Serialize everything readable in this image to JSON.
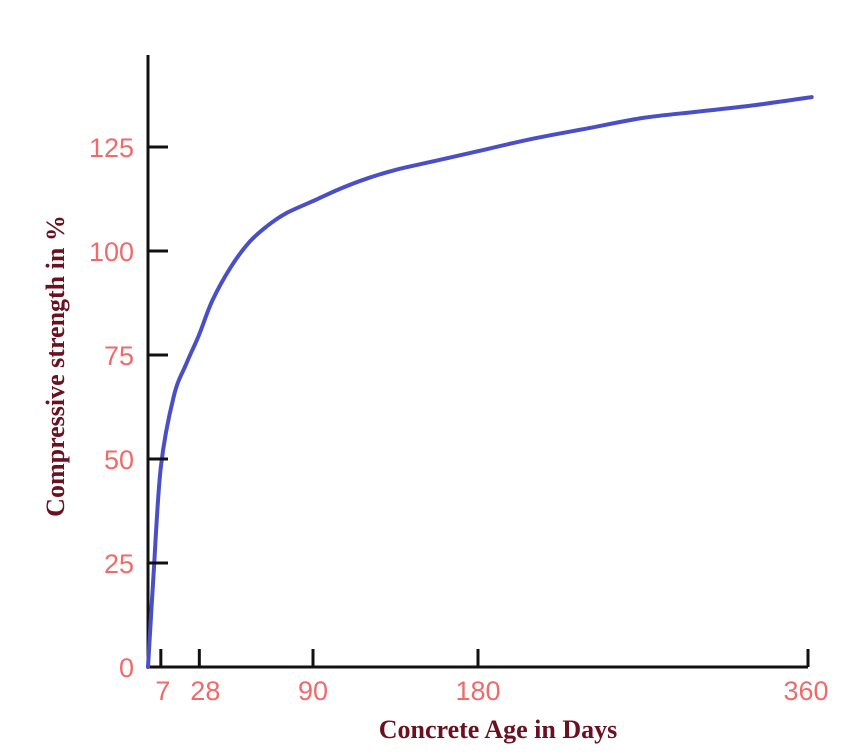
{
  "colors": {
    "tick_labels": "#f06a6a",
    "axis_titles": "#6b1020",
    "curve": "#4a4fc6",
    "axis_lines": "#111111",
    "background": "#ffffff"
  },
  "chart_data": {
    "type": "line",
    "title": "",
    "xlabel": "Concrete Age in Days",
    "ylabel": "Compressive strength in %",
    "x_ticks": [
      7,
      28,
      90,
      180,
      360
    ],
    "x_tick_labels": [
      "7",
      "28",
      "90",
      "180",
      "360"
    ],
    "y_ticks": [
      0,
      25,
      50,
      75,
      100,
      125
    ],
    "y_tick_labels": [
      "0",
      "25",
      "50",
      "75",
      "100",
      "125"
    ],
    "xlim": [
      0,
      360
    ],
    "ylim": [
      0,
      150
    ],
    "grid": false,
    "legend": "none",
    "series": [
      {
        "x": [
          0,
          3,
          7,
          14,
          21,
          28,
          35,
          45,
          55,
          65,
          75,
          90,
          105,
          120,
          135,
          150,
          165,
          180,
          210,
          240,
          270,
          300,
          330,
          362
        ],
        "values": [
          0,
          22,
          48,
          65,
          73,
          80,
          88,
          96,
          102,
          106,
          109,
          112,
          115,
          117.5,
          119.5,
          121,
          122.5,
          124,
          127,
          129.5,
          132,
          133.5,
          135,
          137
        ]
      }
    ]
  }
}
